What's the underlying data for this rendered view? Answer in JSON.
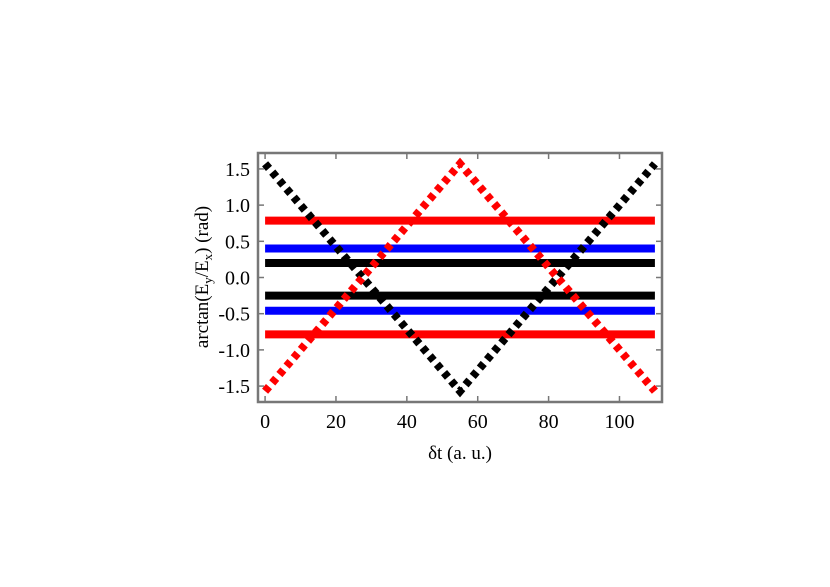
{
  "chart_data": {
    "type": "line",
    "title": "",
    "xlabel": "δt (a. u.)",
    "ylabel": "arctan(Ey/Ex) (rad)",
    "xlim": [
      -2,
      112
    ],
    "ylim": [
      -1.72,
      1.72
    ],
    "x_ticks": [
      0,
      20,
      40,
      60,
      80,
      100
    ],
    "x_tick_labels": [
      "0",
      "20",
      "40",
      "60",
      "80",
      "100"
    ],
    "y_ticks": [
      1.5,
      1.0,
      0.5,
      0.0,
      -0.5,
      -1.0,
      -1.5
    ],
    "y_tick_labels": [
      "1.5",
      "1.0",
      "0.5",
      "0.0",
      "-0.5",
      "-1.0",
      "-1.5"
    ],
    "grid": false,
    "legend": "none",
    "series": [
      {
        "color": "#ff0000",
        "style": "solid",
        "x": [
          0,
          110
        ],
        "y": [
          0.785,
          0.785
        ]
      },
      {
        "color": "#ff0000",
        "style": "solid",
        "x": [
          0,
          110
        ],
        "y": [
          -0.785,
          -0.785
        ]
      },
      {
        "color": "#0000ff",
        "style": "solid",
        "x": [
          0,
          110
        ],
        "y": [
          0.4,
          0.4
        ]
      },
      {
        "color": "#0000ff",
        "style": "solid",
        "x": [
          0,
          110
        ],
        "y": [
          -0.46,
          -0.46
        ]
      },
      {
        "color": "#000000",
        "style": "solid",
        "x": [
          0,
          110
        ],
        "y": [
          0.2,
          0.2
        ]
      },
      {
        "color": "#000000",
        "style": "solid",
        "x": [
          0,
          110
        ],
        "y": [
          -0.25,
          -0.25
        ]
      },
      {
        "color": "#000000",
        "style": "dotted",
        "x": [
          0,
          55,
          110
        ],
        "y": [
          1.5708,
          -1.5708,
          1.5708
        ]
      },
      {
        "color": "#ff0000",
        "style": "dotted",
        "x": [
          0,
          55,
          110
        ],
        "y": [
          -1.5708,
          1.5708,
          -1.5708
        ]
      }
    ]
  }
}
